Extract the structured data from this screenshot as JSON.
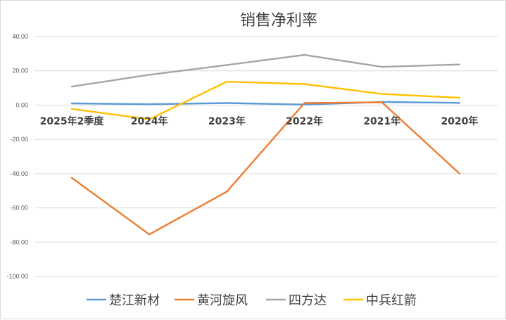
{
  "chart_data": {
    "type": "line",
    "title": "销售净利率",
    "categories": [
      "2025年2季度",
      "2024年",
      "2023年",
      "2022年",
      "2021年",
      "2020年"
    ],
    "ylim": [
      -100,
      40
    ],
    "yticks": [
      "40.00",
      "20.00",
      "0.00",
      "-20.00",
      "-40.00",
      "-60.00",
      "-80.00",
      "-100.00"
    ],
    "ytick_values": [
      40,
      20,
      0,
      -20,
      -40,
      -60,
      -80,
      -100
    ],
    "grid": true,
    "legend_position": "bottom",
    "series": [
      {
        "name": "楚江新材",
        "color": "#5b9bd5",
        "values": [
          1.0,
          0.5,
          1.2,
          0.3,
          1.8,
          1.3
        ]
      },
      {
        "name": "黄河旋风",
        "color": "#ed7d31",
        "values": [
          -42.5,
          -75.5,
          -50.5,
          1.2,
          1.6,
          -40.0
        ]
      },
      {
        "name": "四方达",
        "color": "#a5a5a5",
        "values": [
          10.8,
          17.7,
          23.4,
          29.3,
          22.3,
          23.7
        ]
      },
      {
        "name": "中兵红箭",
        "color": "#ffc000",
        "values": [
          -2.2,
          -8.3,
          13.7,
          12.3,
          6.5,
          4.3
        ]
      }
    ]
  }
}
